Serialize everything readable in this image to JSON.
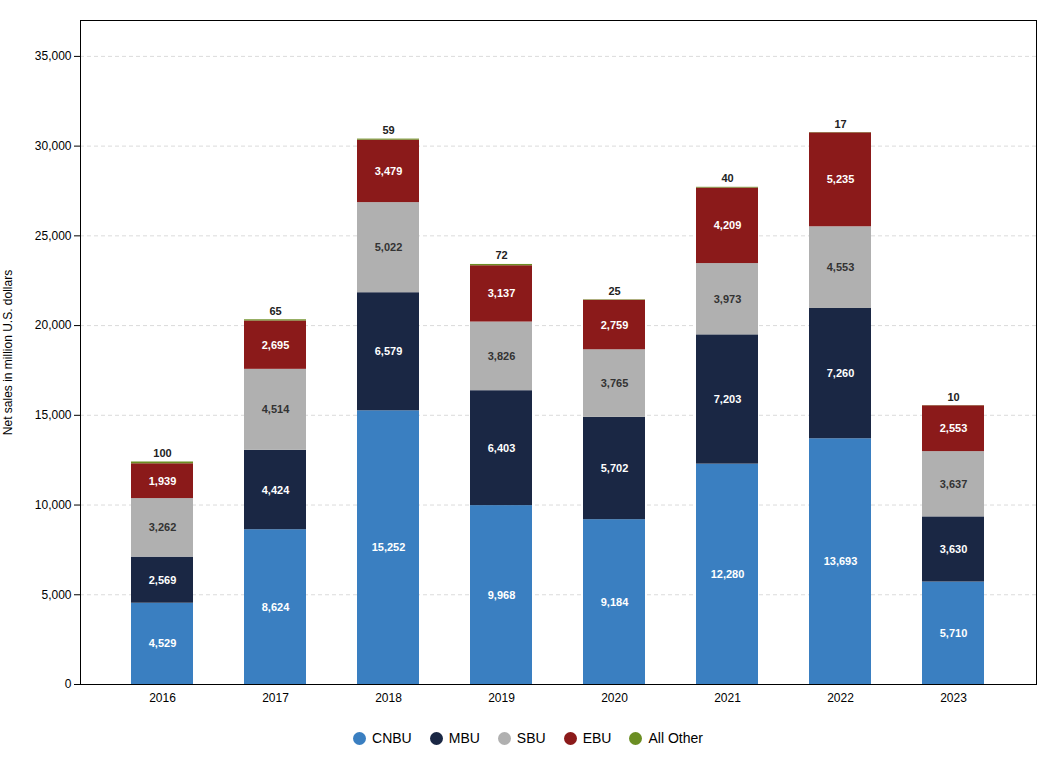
{
  "chart_data": {
    "type": "bar",
    "stacked": true,
    "categories": [
      "2016",
      "2017",
      "2018",
      "2019",
      "2020",
      "2021",
      "2022",
      "2023"
    ],
    "series": [
      {
        "name": "CNBU",
        "color": "#3a7fc1",
        "values": [
          4529,
          8624,
          15252,
          9968,
          9184,
          12280,
          13693,
          5710
        ],
        "value_labels": [
          "4,529",
          "8,624",
          "15,252",
          "9,968",
          "9,184",
          "12,280",
          "13,693",
          "5,710"
        ]
      },
      {
        "name": "MBU",
        "color": "#1a2744",
        "values": [
          2569,
          4424,
          6579,
          6403,
          5702,
          7203,
          7260,
          3630
        ],
        "value_labels": [
          "2,569",
          "4,424",
          "6,579",
          "6,403",
          "5,702",
          "7,203",
          "7,260",
          "3,630"
        ]
      },
      {
        "name": "SBU",
        "color": "#b0b0b0",
        "values": [
          3262,
          4514,
          5022,
          3826,
          3765,
          3973,
          4553,
          3637
        ],
        "value_labels": [
          "3,262",
          "4,514",
          "5,022",
          "3,826",
          "3,765",
          "3,973",
          "4,553",
          "3,637"
        ]
      },
      {
        "name": "EBU",
        "color": "#8b1a1a",
        "values": [
          1939,
          2695,
          3479,
          3137,
          2759,
          4209,
          5235,
          2553
        ],
        "value_labels": [
          "1,939",
          "2,695",
          "3,479",
          "3,137",
          "2,759",
          "4,209",
          "5,235",
          "2,553"
        ]
      },
      {
        "name": "All Other",
        "color": "#6b8e23",
        "values": [
          100,
          65,
          59,
          72,
          25,
          40,
          17,
          10
        ]
      }
    ],
    "ylabel": "Net sales in million U.S. dollars",
    "ylim": [
      0,
      37000
    ],
    "yticks": [
      0,
      {
        "value": 5000,
        "label": "5,000"
      },
      {
        "value": 10000,
        "label": "10,000"
      },
      {
        "value": 15000,
        "label": "15,000"
      },
      {
        "value": 20000,
        "label": "20,000"
      },
      {
        "value": 25000,
        "label": "25,000"
      },
      {
        "value": 30000,
        "label": "30,000"
      },
      {
        "value": 35000,
        "label": "35,000"
      }
    ],
    "grid": true,
    "legend": "bottom",
    "data_labels": true
  }
}
